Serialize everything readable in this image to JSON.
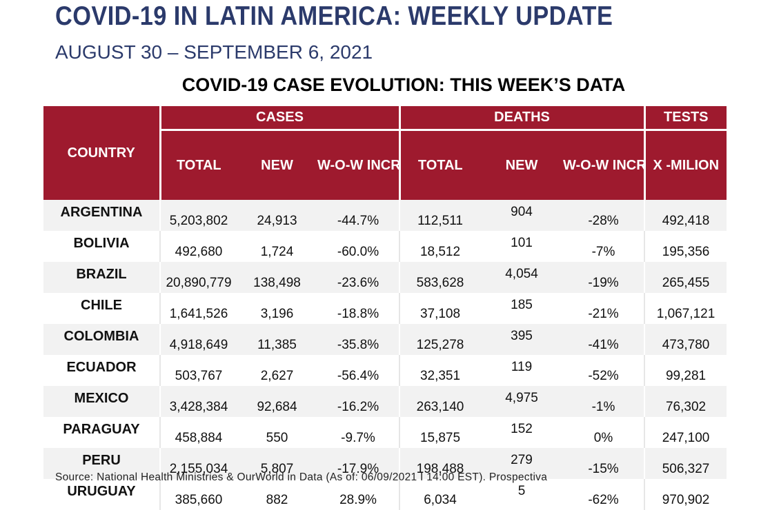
{
  "header": {
    "title": "COVID-19 IN LATIN AMERICA: WEEKLY UPDATE",
    "subtitle": "AUGUST 30 – SEPTEMBER 6, 2021",
    "table_title": "COVID-19 CASE EVOLUTION: THIS WEEK’S DATA"
  },
  "table": {
    "headers": {
      "country": "COUNTRY",
      "cases": "CASES",
      "deaths": "DEATHS",
      "tests": "TESTS",
      "cases_total": "TOTAL",
      "cases_new": "NEW",
      "cases_wow": "W-O-W INCREASE (%)",
      "deaths_total": "TOTAL",
      "deaths_new": "NEW",
      "deaths_wow": "W-O-W INCREASE (%)",
      "tests_per_million": "X -MILION"
    },
    "rows": [
      {
        "country": "ARGENTINA",
        "cases_total": "5,203,802",
        "cases_new": "24,913",
        "cases_wow": "-44.7%",
        "deaths_total": "112,511",
        "deaths_new": "904",
        "deaths_wow": "-28%",
        "tests": "492,418"
      },
      {
        "country": "BOLIVIA",
        "cases_total": "492,680",
        "cases_new": "1,724",
        "cases_wow": "-60.0%",
        "deaths_total": "18,512",
        "deaths_new": "101",
        "deaths_wow": "-7%",
        "tests": "195,356"
      },
      {
        "country": "BRAZIL",
        "cases_total": "20,890,779",
        "cases_new": "138,498",
        "cases_wow": "-23.6%",
        "deaths_total": "583,628",
        "deaths_new": "4,054",
        "deaths_wow": "-19%",
        "tests": "265,455"
      },
      {
        "country": "CHILE",
        "cases_total": "1,641,526",
        "cases_new": "3,196",
        "cases_wow": "-18.8%",
        "deaths_total": "37,108",
        "deaths_new": "185",
        "deaths_wow": "-21%",
        "tests": "1,067,121"
      },
      {
        "country": "COLOMBIA",
        "cases_total": "4,918,649",
        "cases_new": "11,385",
        "cases_wow": "-35.8%",
        "deaths_total": "125,278",
        "deaths_new": "395",
        "deaths_wow": "-41%",
        "tests": "473,780"
      },
      {
        "country": "ECUADOR",
        "cases_total": "503,767",
        "cases_new": "2,627",
        "cases_wow": "-56.4%",
        "deaths_total": "32,351",
        "deaths_new": "119",
        "deaths_wow": "-52%",
        "tests": "99,281"
      },
      {
        "country": "MEXICO",
        "cases_total": "3,428,384",
        "cases_new": "92,684",
        "cases_wow": "-16.2%",
        "deaths_total": "263,140",
        "deaths_new": "4,975",
        "deaths_wow": "-1%",
        "tests": "76,302"
      },
      {
        "country": "PARAGUAY",
        "cases_total": "458,884",
        "cases_new": "550",
        "cases_wow": "-9.7%",
        "deaths_total": "15,875",
        "deaths_new": "152",
        "deaths_wow": "0%",
        "tests": "247,100"
      },
      {
        "country": "PERU",
        "cases_total": "2,155,034",
        "cases_new": "5,807",
        "cases_wow": "-17.9%",
        "deaths_total": "198,488",
        "deaths_new": "279",
        "deaths_wow": "-15%",
        "tests": "506,327"
      },
      {
        "country": "URUGUAY",
        "cases_total": "385,660",
        "cases_new": "882",
        "cases_wow": "28.9%",
        "deaths_total": "6,034",
        "deaths_new": "5",
        "deaths_wow": "-62%",
        "tests": "970,902"
      }
    ]
  },
  "footer": {
    "source": "Source: National Health Ministries & OurWorld in Data (As of: 06/09/2021 I 14:00 EST). Prospectiva"
  },
  "colors": {
    "title": "#2b3a6b",
    "header_bg": "#9e1a2e",
    "row_shade": "#f2f2f2"
  }
}
